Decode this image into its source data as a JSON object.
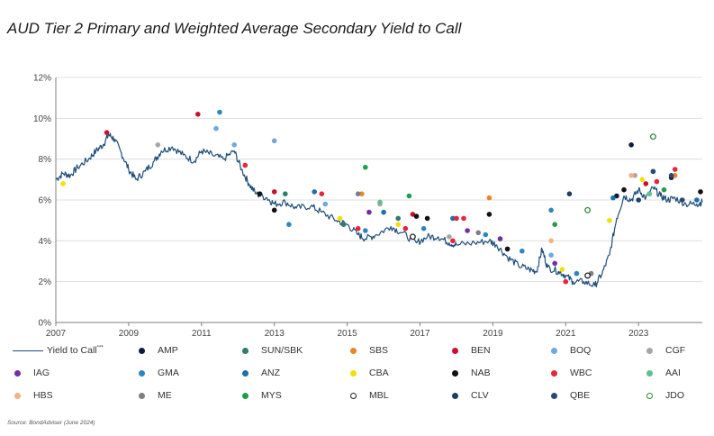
{
  "chart_data": {
    "type": "line",
    "title": "AUD Tier 2 Primary and Weighted Average Secondary Yield to Call",
    "xlabel": "",
    "ylabel": "",
    "xlim": [
      2007,
      2024.75
    ],
    "ylim": [
      0,
      12
    ],
    "x_ticks": [
      "2007",
      "2009",
      "2011",
      "2013",
      "2015",
      "2017",
      "2019",
      "2021",
      "2023"
    ],
    "y_ticks": [
      "0%",
      "2%",
      "4%",
      "6%",
      "8%",
      "10%",
      "12%"
    ],
    "grid": "horizontal",
    "legend_position": "bottom",
    "line_series": {
      "name": "Yield to Call",
      "name_suffix": "***",
      "color": "#1f4e79",
      "points": [
        [
          2007.0,
          7.0
        ],
        [
          2007.2,
          7.3
        ],
        [
          2007.4,
          7.2
        ],
        [
          2007.6,
          7.6
        ],
        [
          2007.9,
          8.0
        ],
        [
          2008.1,
          8.4
        ],
        [
          2008.3,
          8.7
        ],
        [
          2008.45,
          9.2
        ],
        [
          2008.6,
          9.0
        ],
        [
          2008.8,
          8.3
        ],
        [
          2009.0,
          7.5
        ],
        [
          2009.2,
          7.0
        ],
        [
          2009.45,
          7.4
        ],
        [
          2009.7,
          7.9
        ],
        [
          2009.9,
          8.4
        ],
        [
          2010.2,
          8.6
        ],
        [
          2010.5,
          8.2
        ],
        [
          2010.8,
          7.9
        ],
        [
          2011.0,
          8.4
        ],
        [
          2011.3,
          8.2
        ],
        [
          2011.6,
          8.0
        ],
        [
          2011.9,
          8.4
        ],
        [
          2012.1,
          7.5
        ],
        [
          2012.3,
          6.8
        ],
        [
          2012.5,
          6.3
        ],
        [
          2012.8,
          6.1
        ],
        [
          2013.0,
          5.8
        ],
        [
          2013.3,
          5.9
        ],
        [
          2013.6,
          5.6
        ],
        [
          2014.0,
          5.7
        ],
        [
          2014.3,
          5.4
        ],
        [
          2014.7,
          5.0
        ],
        [
          2015.0,
          4.8
        ],
        [
          2015.3,
          4.3
        ],
        [
          2015.5,
          4.1
        ],
        [
          2015.8,
          4.3
        ],
        [
          2016.2,
          4.7
        ],
        [
          2016.5,
          4.4
        ],
        [
          2016.9,
          3.9
        ],
        [
          2017.2,
          4.2
        ],
        [
          2017.5,
          4.2
        ],
        [
          2017.8,
          3.9
        ],
        [
          2018.0,
          3.8
        ],
        [
          2018.5,
          3.9
        ],
        [
          2018.9,
          4.0
        ],
        [
          2019.1,
          3.8
        ],
        [
          2019.4,
          3.2
        ],
        [
          2019.7,
          2.8
        ],
        [
          2020.0,
          2.6
        ],
        [
          2020.2,
          2.5
        ],
        [
          2020.35,
          3.6
        ],
        [
          2020.5,
          2.7
        ],
        [
          2020.8,
          2.5
        ],
        [
          2021.0,
          2.3
        ],
        [
          2021.2,
          2.0
        ],
        [
          2021.5,
          2.0
        ],
        [
          2021.8,
          1.8
        ],
        [
          2022.0,
          2.4
        ],
        [
          2022.2,
          3.3
        ],
        [
          2022.4,
          5.1
        ],
        [
          2022.6,
          6.2
        ],
        [
          2022.8,
          6.0
        ],
        [
          2023.0,
          6.5
        ],
        [
          2023.2,
          6.1
        ],
        [
          2023.4,
          6.6
        ],
        [
          2023.6,
          6.2
        ],
        [
          2023.8,
          6.0
        ],
        [
          2024.0,
          6.1
        ],
        [
          2024.3,
          5.8
        ],
        [
          2024.6,
          5.8
        ],
        [
          2024.75,
          5.9
        ]
      ]
    },
    "scatter_series": [
      {
        "name": "AMP",
        "color": "#0d1b3e",
        "ring": false,
        "points": [
          [
            2022.8,
            8.7
          ],
          [
            2022.4,
            6.2
          ],
          [
            2023.9,
            7.1
          ]
        ]
      },
      {
        "name": "SUN/SBK",
        "color": "#2f7a6b",
        "ring": false,
        "points": [
          [
            2013.3,
            6.3
          ],
          [
            2014.9,
            4.8
          ],
          [
            2016.4,
            5.1
          ]
        ]
      },
      {
        "name": "SBS",
        "color": "#e8862a",
        "ring": false,
        "points": [
          [
            2015.4,
            6.3
          ],
          [
            2018.9,
            6.1
          ],
          [
            2024.0,
            7.2
          ]
        ]
      },
      {
        "name": "BEN",
        "color": "#c8102e",
        "ring": false,
        "points": [
          [
            2010.9,
            10.2
          ],
          [
            2008.4,
            9.3
          ],
          [
            2013.0,
            6.4
          ],
          [
            2016.8,
            5.3
          ],
          [
            2023.2,
            6.8
          ]
        ]
      },
      {
        "name": "BOQ",
        "color": "#6fa8dc",
        "ring": false,
        "points": [
          [
            2011.4,
            9.5
          ],
          [
            2011.9,
            8.7
          ],
          [
            2013.0,
            8.9
          ],
          [
            2014.4,
            5.8
          ],
          [
            2020.6,
            3.3
          ]
        ]
      },
      {
        "name": "CGF",
        "color": "#a6a6a6",
        "ring": false,
        "points": [
          [
            2009.8,
            8.7
          ],
          [
            2015.9,
            5.8
          ],
          [
            2017.8,
            4.2
          ],
          [
            2022.9,
            7.2
          ]
        ]
      },
      {
        "name": "IAG",
        "color": "#7030a0",
        "ring": false,
        "points": [
          [
            2015.6,
            5.4
          ],
          [
            2018.3,
            4.5
          ],
          [
            2019.2,
            4.1
          ],
          [
            2020.7,
            2.9
          ]
        ]
      },
      {
        "name": "GMA",
        "color": "#2e86c1",
        "ring": false,
        "points": [
          [
            2011.5,
            10.3
          ],
          [
            2013.4,
            4.8
          ],
          [
            2015.5,
            4.5
          ],
          [
            2017.1,
            4.6
          ],
          [
            2018.8,
            4.3
          ],
          [
            2019.8,
            3.5
          ],
          [
            2020.6,
            5.5
          ],
          [
            2021.3,
            2.4
          ]
        ]
      },
      {
        "name": "ANZ",
        "color": "#1f6fa8",
        "ring": false,
        "points": [
          [
            2014.1,
            6.4
          ],
          [
            2016.0,
            5.4
          ],
          [
            2017.9,
            5.1
          ],
          [
            2022.3,
            6.1
          ],
          [
            2023.4,
            7.4
          ],
          [
            2024.6,
            6.0
          ]
        ]
      },
      {
        "name": "CBA",
        "color": "#f2e000",
        "ring": false,
        "points": [
          [
            2007.2,
            6.8
          ],
          [
            2014.8,
            5.1
          ],
          [
            2016.4,
            4.8
          ],
          [
            2020.9,
            2.6
          ],
          [
            2022.2,
            5.0
          ],
          [
            2023.1,
            7.0
          ]
        ]
      },
      {
        "name": "NAB",
        "color": "#111111",
        "ring": false,
        "points": [
          [
            2012.6,
            6.3
          ],
          [
            2013.0,
            5.5
          ],
          [
            2016.9,
            5.2
          ],
          [
            2017.2,
            5.1
          ],
          [
            2018.9,
            5.3
          ],
          [
            2019.4,
            3.6
          ],
          [
            2022.6,
            6.5
          ],
          [
            2024.7,
            6.4
          ]
        ]
      },
      {
        "name": "WBC",
        "color": "#e3263b",
        "ring": false,
        "points": [
          [
            2012.2,
            7.7
          ],
          [
            2014.3,
            6.3
          ],
          [
            2015.3,
            4.6
          ],
          [
            2016.6,
            4.6
          ],
          [
            2017.9,
            4.0
          ],
          [
            2018.0,
            5.1
          ],
          [
            2018.2,
            5.1
          ],
          [
            2021.0,
            2.0
          ],
          [
            2023.5,
            6.9
          ],
          [
            2024.0,
            7.5
          ]
        ]
      },
      {
        "name": "AAI",
        "color": "#5fbf8f",
        "ring": false,
        "points": [
          [
            2015.9,
            5.9
          ],
          [
            2023.3,
            6.3
          ]
        ]
      },
      {
        "name": "HBS",
        "color": "#f4b183",
        "ring": false,
        "points": [
          [
            2020.6,
            4.0
          ],
          [
            2022.8,
            7.2
          ]
        ]
      },
      {
        "name": "ME",
        "color": "#7f7f7f",
        "ring": false,
        "points": [
          [
            2015.3,
            6.3
          ],
          [
            2018.6,
            4.4
          ],
          [
            2021.7,
            2.4
          ]
        ]
      },
      {
        "name": "MYS",
        "color": "#1e9e4a",
        "ring": false,
        "points": [
          [
            2015.5,
            7.6
          ],
          [
            2016.7,
            6.2
          ],
          [
            2020.7,
            4.8
          ],
          [
            2023.7,
            6.5
          ]
        ]
      },
      {
        "name": "MBL",
        "color": "#222222",
        "ring": true,
        "points": [
          [
            2016.8,
            4.2
          ],
          [
            2021.6,
            2.3
          ]
        ]
      },
      {
        "name": "CLV",
        "color": "#1f3f60",
        "ring": false,
        "points": [
          [
            2021.1,
            6.3
          ],
          [
            2023.0,
            6.0
          ]
        ]
      },
      {
        "name": "QBE",
        "color": "#2c4a6e",
        "ring": false,
        "points": [
          [
            2023.4,
            7.4
          ],
          [
            2023.9,
            7.2
          ],
          [
            2024.2,
            6.0
          ]
        ]
      },
      {
        "name": "JDO",
        "color": "#2e8b3a",
        "ring": true,
        "points": [
          [
            2021.6,
            5.5
          ],
          [
            2023.4,
            9.1
          ]
        ]
      }
    ]
  },
  "source": "Source: BondAdviser (June 2024)"
}
